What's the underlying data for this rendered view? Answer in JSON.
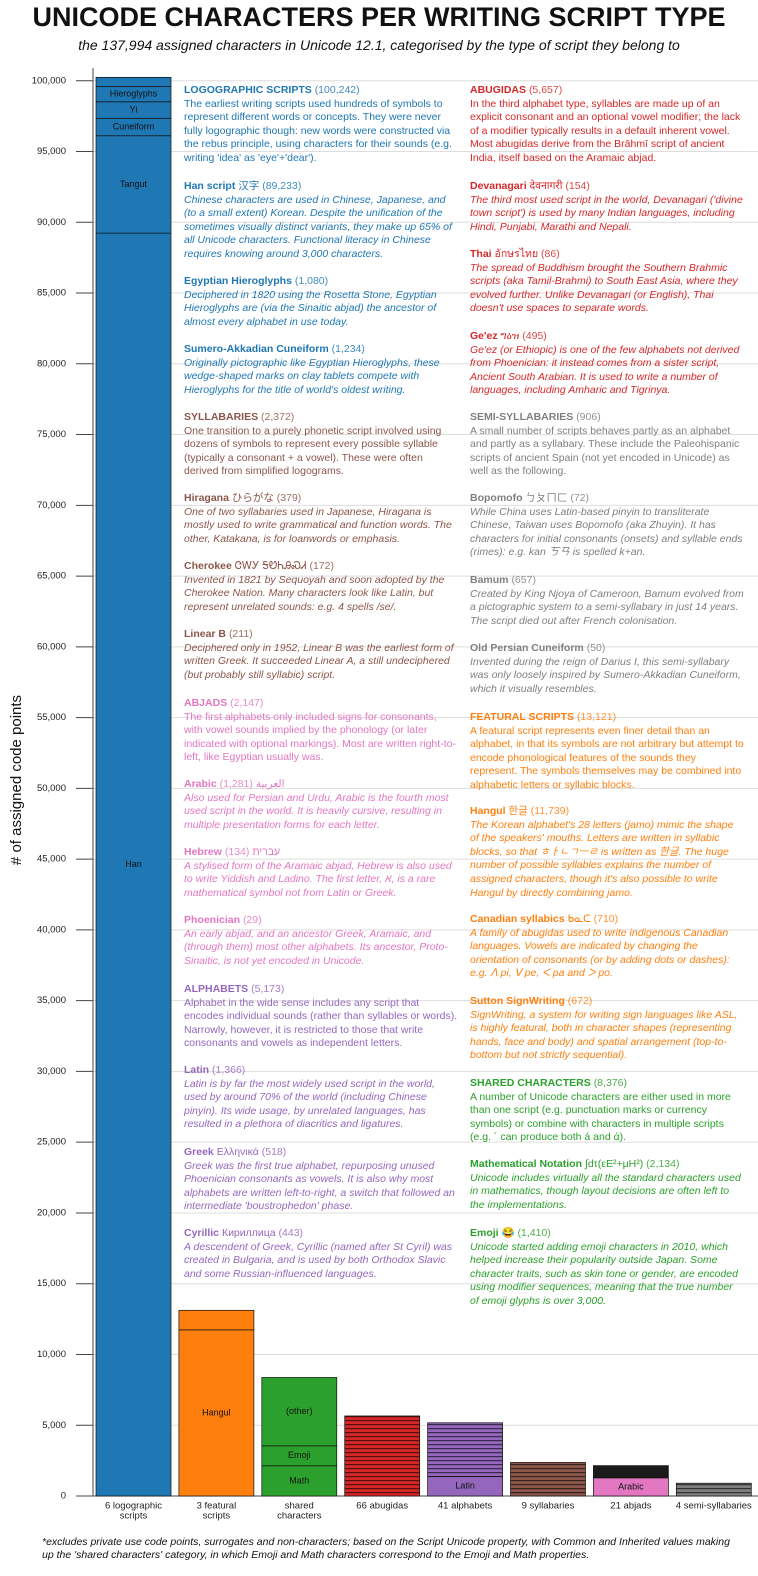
{
  "title": "UNICODE CHARACTERS PER WRITING SCRIPT TYPE",
  "subtitle": "the 137,994 assigned characters in Unicode 12.1, categorised by the type of script they belong to",
  "chart_data": {
    "type": "stacked_bar",
    "ylabel": "# of assigned code points",
    "ylim": [
      0,
      100900
    ],
    "yticks": [
      0,
      {
        "value": 5000,
        "label": "5,000"
      },
      {
        "value": 10000,
        "label": "10,000"
      },
      {
        "value": 15000,
        "label": "15,000"
      },
      {
        "value": 20000,
        "label": "20,000"
      },
      {
        "value": 25000,
        "label": "25,000"
      },
      {
        "value": 30000,
        "label": "30,000"
      },
      {
        "value": 35000,
        "label": "35,000"
      },
      {
        "value": 40000,
        "label": "40,000"
      },
      {
        "value": 45000,
        "label": "45,000"
      },
      {
        "value": 50000,
        "label": "50,000"
      },
      {
        "value": 55000,
        "label": "55,000"
      },
      {
        "value": 60000,
        "label": "60,000"
      },
      {
        "value": 65000,
        "label": "65,000"
      },
      {
        "value": 70000,
        "label": "70,000"
      },
      {
        "value": 75000,
        "label": "75,000"
      },
      {
        "value": 80000,
        "label": "80,000"
      },
      {
        "value": 85000,
        "label": "85,000"
      },
      {
        "value": 90000,
        "label": "90,000"
      },
      {
        "value": 95000,
        "label": "95,000"
      },
      {
        "value": 100000,
        "label": "100,000"
      }
    ],
    "grid": true,
    "bars": [
      {
        "category": [
          "6 logographic",
          "scripts"
        ],
        "color": "#1f77b4",
        "segments": [
          {
            "name": "Han",
            "value": 89233
          },
          {
            "name": "Tangut",
            "value": 6880
          },
          {
            "name": "Cuneiform",
            "value": 1234
          },
          {
            "name": "Yi",
            "value": 1165
          },
          {
            "name": "Hieroglyphs",
            "value": 1080
          },
          {
            "name": null,
            "value": 650
          }
        ]
      },
      {
        "category": [
          "3 featural",
          "scripts"
        ],
        "color": "#ff7f0e",
        "segments": [
          {
            "name": "Hangul",
            "value": 11739
          },
          {
            "name": null,
            "value": 1382
          }
        ]
      },
      {
        "category": [
          "shared",
          "characters"
        ],
        "color": "#2ca02c",
        "segments": [
          {
            "name": "Math",
            "value": 2134
          },
          {
            "name": "Emoji",
            "value": 1410
          },
          {
            "name": "(other)",
            "value": 4832
          }
        ]
      },
      {
        "category": [
          "66 abugidas"
        ],
        "color": "#d62728",
        "segments": [
          {
            "name": null,
            "value": 5657,
            "striped": true
          }
        ]
      },
      {
        "category": [
          "41 alphabets"
        ],
        "color": "#9467bd",
        "segments": [
          {
            "name": "Latin",
            "value": 1366
          },
          {
            "name": null,
            "value": 3807,
            "striped": true
          }
        ]
      },
      {
        "category": [
          "9 syllabaries"
        ],
        "color": "#8c564b",
        "segments": [
          {
            "name": null,
            "value": 2372,
            "striped": true
          }
        ]
      },
      {
        "category": [
          "21 abjads"
        ],
        "color": "#e377c2",
        "segments": [
          {
            "name": "Arabic",
            "value": 1281
          },
          {
            "name": null,
            "value": 866,
            "color": "#1a1a1a"
          }
        ]
      },
      {
        "category": [
          "4 semi-syllabaries"
        ],
        "color": "#7f7f7f",
        "segments": [
          {
            "name": null,
            "value": 906,
            "striped": true
          }
        ]
      }
    ]
  },
  "columns": [
    [
      {
        "color": "#1f77b4",
        "name": "LOGOGRAPHIC SCRIPTS",
        "count": "(100,242)",
        "text": "The earliest writing scripts used hundreds of symbols to represent different words or concepts. They were never fully logographic though: new words were constructed via the rebus principle, using characters for their sounds (e.g. writing 'idea' as 'eye'+'dear').",
        "scripts": [
          {
            "name": "Han script",
            "sample": "汉字",
            "count": "(89,233)",
            "text": "Chinese characters are used in Chinese, Japanese, and (to a small extent) Korean. Despite the unification of the sometimes visually distinct variants, they make up 65% of all Unicode characters. Functional literacy in Chinese requires knowing around 3,000 characters."
          },
          {
            "name": "Egyptian Hieroglyphs",
            "count": "(1,080)",
            "text": "Deciphered in 1820 using the Rosetta Stone, Egyptian Hieroglyphs are (via the Sinaitic abjad) the ancestor of almost every alphabet in use today."
          },
          {
            "name": "Sumero-Akkadian Cuneiform",
            "count": "(1,234)",
            "text": "Originally pictographic like Egyptian Hieroglyphs, these wedge-shaped marks on clay tablets compete with Hieroglyphs for the title of world's oldest writing."
          }
        ]
      },
      {
        "color": "#8c564b",
        "name": "SYLLABARIES",
        "count": "(2,372)",
        "text": "One transition to a purely phonetic script involved using dozens of symbols to represent every possible syllable (typically a consonant + a vowel). These were often derived from simplified logograms.",
        "scripts": [
          {
            "name": "Hiragana",
            "sample": "ひらがな",
            "count": "(379)",
            "text": "One of two syllabaries used in Japanese, Hiragana is mostly used to write grammatical and function words. The other, Katakana, is for loanwords or emphasis."
          },
          {
            "name": "Cherokee",
            "sample": "ᏣᎳᎩ ᎦᏬᏂᎯᏍᏗ",
            "count": "(172)",
            "text": "Invented in 1821 by Sequoyah and soon adopted by the Cherokee Nation. Many characters look like Latin, but represent unrelated sounds: e.g. 4 spells /se/."
          },
          {
            "name": "Linear B",
            "count": "(211)",
            "text": "Deciphered only in 1952, Linear B was the earliest form of written Greek. It succeeded Linear A, a still undeciphered (but probably still syllabic) script."
          }
        ]
      },
      {
        "color": "#e377c2",
        "name": "ABJADS",
        "count": "(2,147)",
        "text": "The first alphabets only included signs for consonants, with vowel sounds implied by the phonology (or later indicated with optional markings). Most are written right-to-left, like Egyptian usually was.",
        "scripts": [
          {
            "name": "Arabic",
            "sample": "العربية",
            "count": "(1,281)",
            "text": "Also used for Persian and Urdu, Arabic is the fourth most used script in the world. It is heavily cursive, resulting in multiple presentation forms for each letter."
          },
          {
            "name": "Hebrew",
            "sample": "עברית",
            "count": "(134)",
            "text": "A stylised form of the Aramaic abjad, Hebrew is also used to write Yiddish and Ladino. The first letter, א, is a rare mathematical symbol not from Latin or Greek."
          },
          {
            "name": "Phoenician",
            "count": "(29)",
            "text": "An early abjad, and an ancestor Greek, Aramaic, and (through them) most other alphabets. Its ancestor, Proto-Sinaitic, is not yet encoded in Unicode."
          }
        ]
      },
      {
        "color": "#9467bd",
        "name": "ALPHABETS",
        "count": "(5,173)",
        "text": "Alphabet in the wide sense includes any script that encodes individual sounds (rather than syllables or words). Narrowly, however, it is restricted to those that write consonants and vowels as independent letters.",
        "scripts": [
          {
            "name": "Latin",
            "count": "(1,366)",
            "text": "Latin is by far the most widely used script in the world, used by around 70% of the world (including Chinese pinyin). Its wide usage, by unrelated languages, has resulted in a plethora of diacritics and ligatures."
          },
          {
            "name": "Greek",
            "sample": "Ελληνικά",
            "count": "(518)",
            "text": "Greek was the first true alphabet, repurposing unused Phoenician consonants as vowels. It is also why most alphabets are written left-to-right, a switch that followed an intermediate 'boustrophedon' phase."
          },
          {
            "name": "Cyrillic",
            "sample": "Кириллица",
            "count": "(443)",
            "text": "A descendent of Greek, Cyrillic (named after St Cyril) was created in Bulgaria, and is used by both Orthodox Slavic and some Russian-influenced languages."
          }
        ]
      }
    ],
    [
      {
        "color": "#d62728",
        "name": "ABUGIDAS",
        "count": "(5,657)",
        "text": "In the third alphabet type, syllables are made up of an explicit consonant and an optional vowel modifier; the lack of a modifier typically results in a default inherent vowel. Most abugidas derive from the Brāhmī script of ancient India, itself based on the Aramaic abjad.",
        "scripts": [
          {
            "name": "Devanagari",
            "sample": "देवनागरी",
            "count": "(154)",
            "text": "The third most used script in the world, Devanagari ('divine town script') is used by many Indian languages, including Hindi, Punjabi, Marathi and Nepali."
          },
          {
            "name": "Thai",
            "sample": "อักษรไทย",
            "count": "(86)",
            "text": "The spread of Buddhism brought the Southern Brahmic scripts (aka Tamil-Brahmi) to South East Asia, where they evolved further. Unlike Devanagari (or English), Thai doesn't use spaces to separate words."
          },
          {
            "name": "Ge'ez",
            "sample": "ግዕዝ",
            "count": "(495)",
            "text": "Ge'ez (or Ethiopic) is one of the few alphabets not derived from Phoenician: it instead comes from a sister script, Ancient South Arabian. It is used to write a number of languages, including Amharic and Tigrinya."
          }
        ]
      },
      {
        "color": "#7f7f7f",
        "name": "SEMI-SYLLABARIES",
        "count": "(906)",
        "text": "A small number of scripts behaves partly as an alphabet and partly as a syllabary. These include the Paleohispanic scripts of ancient Spain (not yet encoded in Unicode) as well as the following.",
        "scripts": [
          {
            "name": "Bopomofo",
            "sample": "ㄅㄆㄇㄈ",
            "count": "(72)",
            "text": "While China uses Latin-based pinyin to transliterate Chinese, Taiwan uses Bopomofo (aka Zhuyin). It has characters for initial consonants (onsets) and syllable ends (rimes): e.g. kan ㄎㄢ is spelled k+an."
          },
          {
            "name": "Bamum",
            "count": "(657)",
            "text": "Created by King Njoya of Cameroon, Bamum evolved from a pictographic system to a semi-syllabary in just 14 years. The script died out after French colonisation."
          },
          {
            "name": "Old Persian Cuneiform",
            "count": "(50)",
            "text": "Invented during the reign of Darius I, this semi-syllabary was only loosely inspired by Sumero-Akkadian Cuneiform, which it visually resembles."
          }
        ]
      },
      {
        "color": "#ff7f0e",
        "name": "FEATURAL SCRIPTS",
        "count": "(13,121)",
        "text": "A featural script represents even finer detail than an alphabet, in that its symbols are not arbitrary but attempt to encode phonological features of the sounds they represent. The symbols themselves may be combined into alphabetic letters or syllabic blocks.",
        "scripts": [
          {
            "name": "Hangul",
            "sample": "한글",
            "count": "(11,739)",
            "text": "The Korean alphabet's 28 letters (jamo) mimic the shape of the speakers' mouths. Letters are written in syllabic blocks, so that ㅎㅏㄴㄱㅡㄹ is written as 한글. The huge number of possible syllables explains the number of assigned characters, though it's also possible to write Hangul by directly combining jamo."
          },
          {
            "name": "Canadian syllabics",
            "sample": "ᑲᓇᑕ",
            "count": "(710)",
            "text": "A family of abugidas used to write indigenous Canadian languages. Vowels are indicated by changing the orientation of consonants (or by adding dots or dashes): e.g. ᐱ pi, ᐯ pe, ᐸ pa and ᐳ po."
          },
          {
            "name": "Sutton SignWriting",
            "count": "(672)",
            "text": "SignWriting, a system for writing sign languages like ASL, is highly featural, both in character shapes (representing hands, face and body) and spatial arrangement (top-to-bottom but not strictly sequential)."
          }
        ]
      },
      {
        "color": "#2ca02c",
        "name": "SHARED CHARACTERS",
        "count": "(8,376)",
        "text": "A number of Unicode characters are either used in more than one script (e.g. punctuation marks or currency symbols) or combine with characters in multiple scripts (e.g. ´ can produce both á and ά).",
        "scripts": [
          {
            "name": "Mathematical Notation",
            "sample": "∫dτ(εE²+μH²)",
            "count": "(2,134)",
            "text": "Unicode includes virtually all the standard characters used in mathematics, though layout decisions are often left to the implementations."
          },
          {
            "name": "Emoji",
            "sample": "😂",
            "count": "(1,410)",
            "text": "Unicode started adding emoji characters in 2010, which helped increase their popularity outside Japan. Some character traits, such as skin tone or gender, are encoded using modifier sequences, meaning that the true number of emoji glyphs is over 3,000."
          }
        ]
      }
    ]
  ],
  "footnote": "*excludes private use code points, surrogates and non-characters; based on the Script Unicode property, with Common and Inherited values making up the 'shared characters' category, in which Emoji and Math characters correspond to the Emoji and Math properties."
}
